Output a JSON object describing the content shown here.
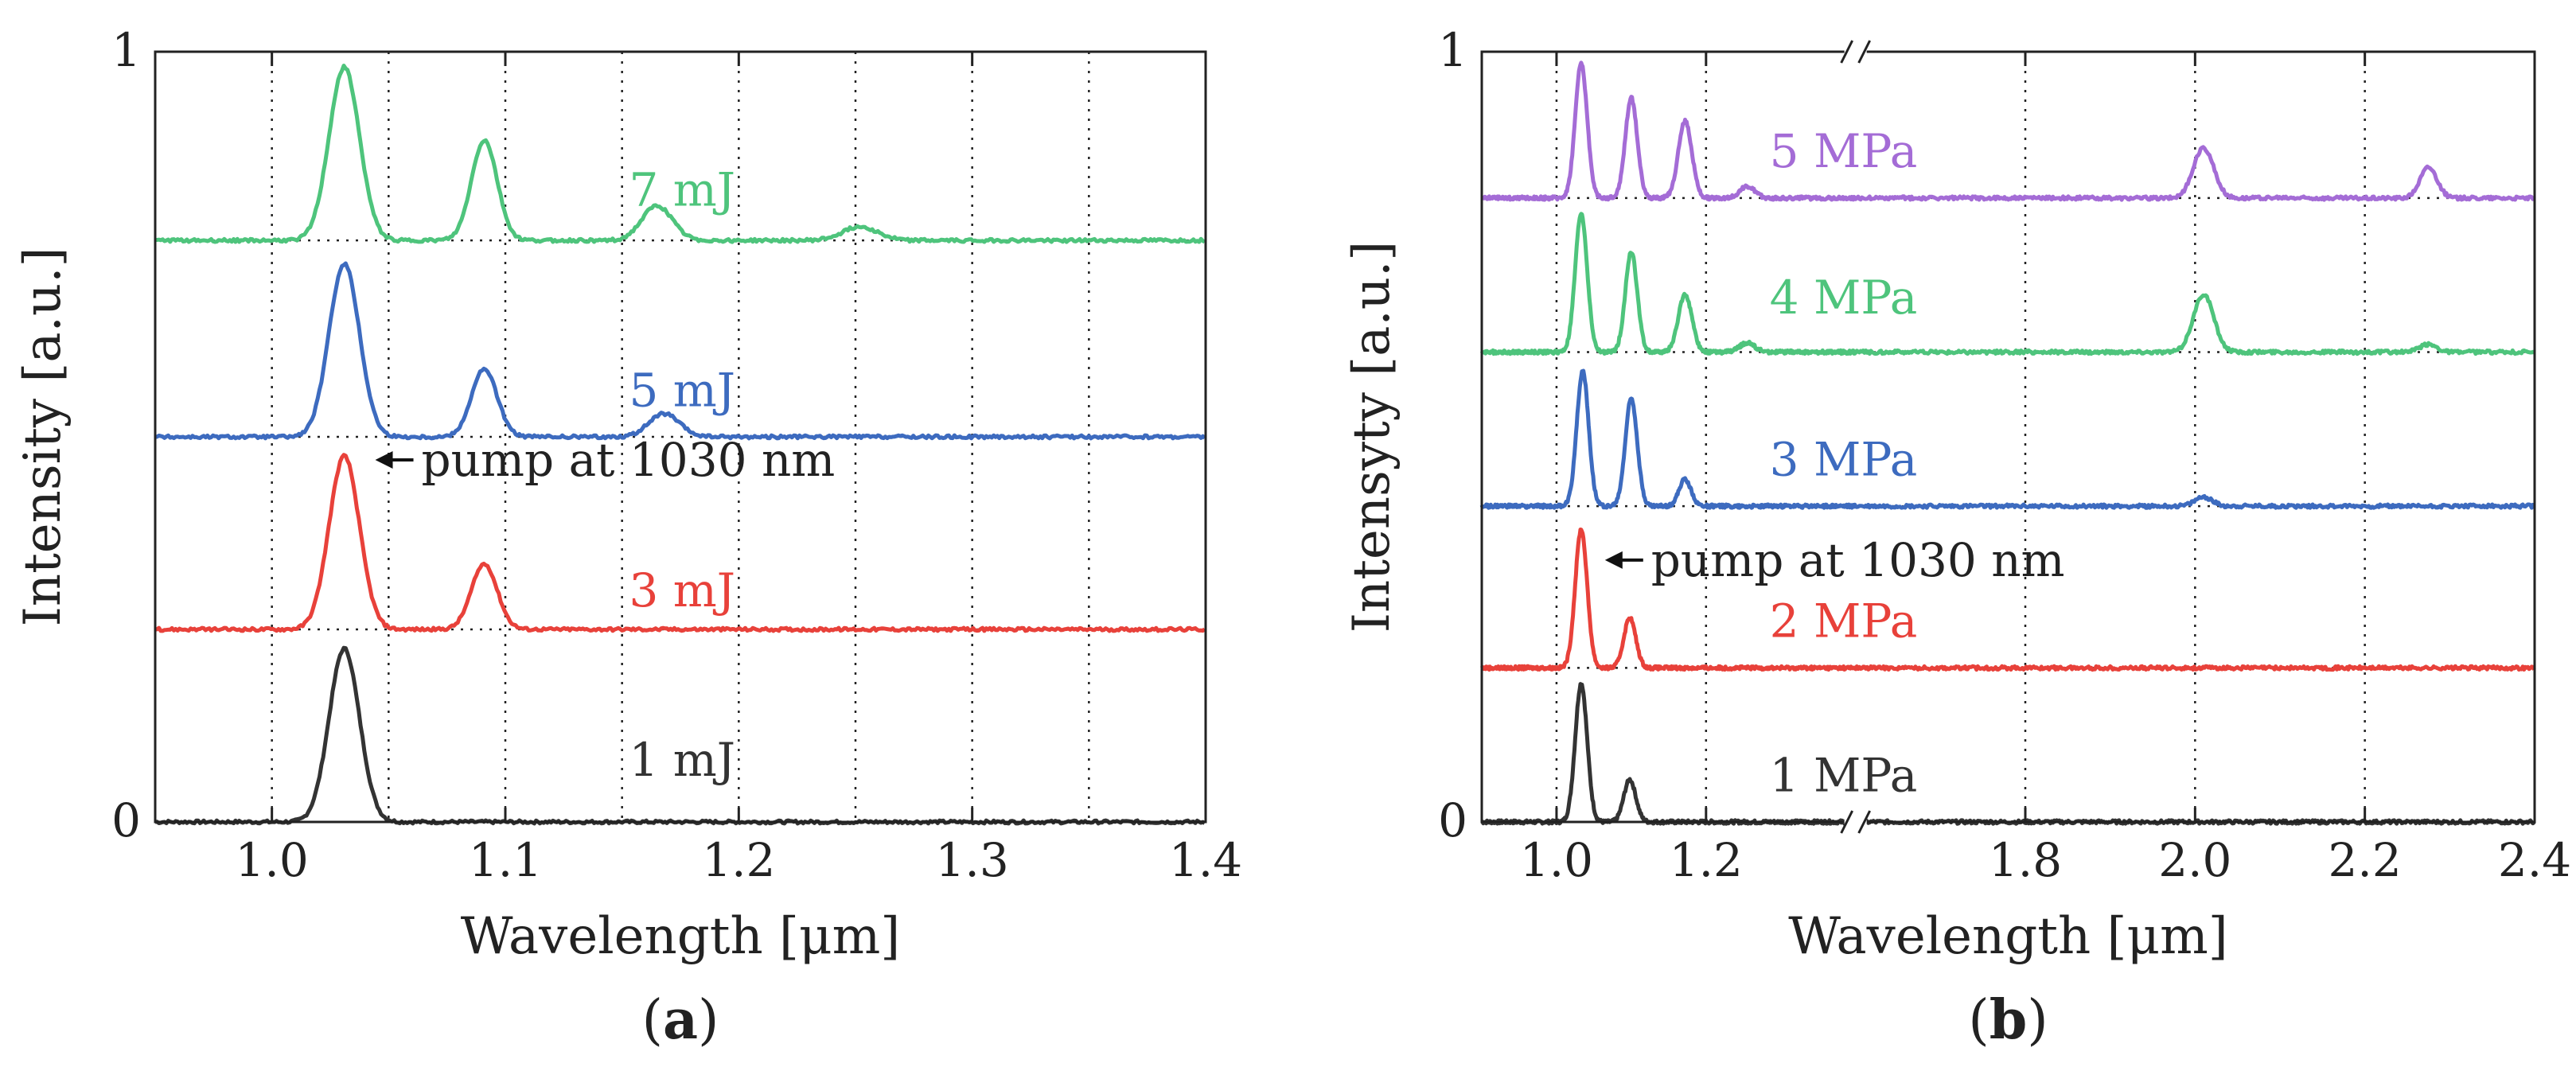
{
  "chart_data": [
    {
      "type": "line",
      "panel": "(a)",
      "panel_label": {
        "open": "(",
        "letter": "a",
        "close": ")"
      },
      "xlabel": "Wavelength [μm]",
      "ylabel": "Intensity [a.u.]",
      "xlim": [
        0.95,
        1.4
      ],
      "ylim": [
        0,
        1
      ],
      "xticks": [
        1.0,
        1.1,
        1.2,
        1.3,
        1.4
      ],
      "xtick_labels": [
        "1.0",
        "1.1",
        "1.2",
        "1.3",
        "1.4"
      ],
      "yticks": [
        0,
        1
      ],
      "ytick_labels": [
        "0",
        "1"
      ],
      "vertical_gridlines": [
        1.0,
        1.05,
        1.1,
        1.15,
        1.2,
        1.25,
        1.3,
        1.35
      ],
      "annotation": {
        "text": "pump at 1030 nm",
        "arrow_target": [
          1.032,
          0.47
        ]
      },
      "series": [
        {
          "name": "1 mJ",
          "label": "1 mJ",
          "color": "#333333",
          "baseline": 0.0,
          "peaks": [
            {
              "x": 1.031,
              "height": 0.225,
              "width": 0.0065
            }
          ],
          "label_pos": [
            1.153,
            0.06
          ]
        },
        {
          "name": "3 mJ",
          "label": "3 mJ",
          "color": "#e8413a",
          "baseline": 0.25,
          "peaks": [
            {
              "x": 1.031,
              "height": 0.225,
              "width": 0.0065
            },
            {
              "x": 1.091,
              "height": 0.085,
              "width": 0.0055
            }
          ],
          "label_pos": [
            1.153,
            0.28
          ]
        },
        {
          "name": "5 mJ",
          "label": "5 mJ",
          "color": "#3d6bbf",
          "baseline": 0.5,
          "peaks": [
            {
              "x": 1.031,
              "height": 0.225,
              "width": 0.0065
            },
            {
              "x": 1.091,
              "height": 0.088,
              "width": 0.0055
            },
            {
              "x": 1.168,
              "height": 0.03,
              "width": 0.0065
            }
          ],
          "label_pos": [
            1.153,
            0.54
          ]
        },
        {
          "name": "7 mJ",
          "label": "7 mJ",
          "color": "#4ec47c",
          "baseline": 0.755,
          "peaks": [
            {
              "x": 1.031,
              "height": 0.225,
              "width": 0.0065
            },
            {
              "x": 1.091,
              "height": 0.13,
              "width": 0.0055
            },
            {
              "x": 1.165,
              "height": 0.045,
              "width": 0.0065
            },
            {
              "x": 1.252,
              "height": 0.018,
              "width": 0.0075
            }
          ],
          "label_pos": [
            1.153,
            0.8
          ]
        }
      ]
    },
    {
      "type": "line",
      "panel": "(b)",
      "panel_label": {
        "open": "(",
        "letter": "b",
        "close": ")"
      },
      "xlabel": "Wavelength [μm]",
      "ylabel": "Intensyty [a.u.]",
      "broken_axis": {
        "left_range": [
          0.9,
          1.4
        ],
        "right_range": [
          1.6,
          2.4
        ],
        "break_mark": "//"
      },
      "ylim": [
        0,
        1
      ],
      "xticks": [
        1.0,
        1.2,
        1.8,
        2.0,
        2.2,
        2.4
      ],
      "xtick_labels": [
        "1.0",
        "1.2",
        "1.8",
        "2.0",
        "2.2",
        "2.4"
      ],
      "yticks": [
        0,
        1
      ],
      "ytick_labels": [
        "0",
        "1"
      ],
      "vertical_gridlines": [
        1.0,
        1.2,
        1.8,
        2.0,
        2.2
      ],
      "annotation": {
        "text": "pump at 1030 nm",
        "arrow_target": [
          1.035,
          0.34
        ]
      },
      "series": [
        {
          "name": "1 MPa",
          "label": "1 MPa",
          "color": "#333333",
          "baseline": 0.0,
          "peaks": [
            {
              "x": 1.033,
              "height": 0.18,
              "width": 0.008
            },
            {
              "x": 1.098,
              "height": 0.055,
              "width": 0.008
            }
          ],
          "label_pos": [
            1.285,
            0.04
          ]
        },
        {
          "name": "2 MPa",
          "label": "2 MPa",
          "color": "#e8413a",
          "baseline": 0.2,
          "peaks": [
            {
              "x": 1.033,
              "height": 0.18,
              "width": 0.008
            },
            {
              "x": 1.098,
              "height": 0.065,
              "width": 0.008
            }
          ],
          "label_pos": [
            1.285,
            0.24
          ]
        },
        {
          "name": "3 MPa",
          "label": "3 MPa",
          "color": "#3d6bbf",
          "baseline": 0.41,
          "peaks": [
            {
              "x": 1.035,
              "height": 0.175,
              "width": 0.008
            },
            {
              "x": 1.1,
              "height": 0.14,
              "width": 0.008
            },
            {
              "x": 1.172,
              "height": 0.035,
              "width": 0.008
            },
            {
              "x": 2.01,
              "height": 0.012,
              "width": 0.01
            }
          ],
          "label_pos": [
            1.285,
            0.45
          ]
        },
        {
          "name": "4 MPa",
          "label": "4 MPa",
          "color": "#4ec47c",
          "baseline": 0.61,
          "peaks": [
            {
              "x": 1.033,
              "height": 0.18,
              "width": 0.008
            },
            {
              "x": 1.1,
              "height": 0.13,
              "width": 0.008
            },
            {
              "x": 1.172,
              "height": 0.075,
              "width": 0.009
            },
            {
              "x": 1.255,
              "height": 0.012,
              "width": 0.01
            },
            {
              "x": 2.01,
              "height": 0.075,
              "width": 0.012
            },
            {
              "x": 2.275,
              "height": 0.01,
              "width": 0.01
            }
          ],
          "label_pos": [
            1.285,
            0.66
          ]
        },
        {
          "name": "5 MPa",
          "label": "5 MPa",
          "color": "#a46cd6",
          "baseline": 0.81,
          "peaks": [
            {
              "x": 1.033,
              "height": 0.175,
              "width": 0.008
            },
            {
              "x": 1.1,
              "height": 0.13,
              "width": 0.008
            },
            {
              "x": 1.172,
              "height": 0.1,
              "width": 0.009
            },
            {
              "x": 1.255,
              "height": 0.015,
              "width": 0.01
            },
            {
              "x": 2.01,
              "height": 0.065,
              "width": 0.012
            },
            {
              "x": 2.275,
              "height": 0.04,
              "width": 0.01
            }
          ],
          "label_pos": [
            1.285,
            0.85
          ]
        }
      ]
    }
  ]
}
